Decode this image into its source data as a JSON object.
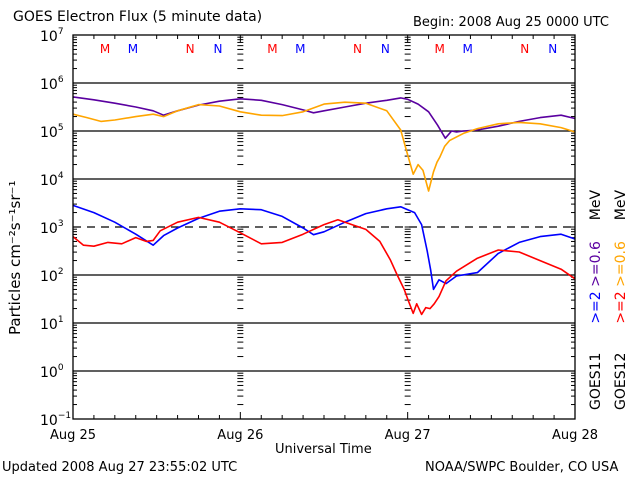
{
  "header": {
    "title": "GOES Electron Flux (5 minute data)",
    "begin": "Begin: 2008 Aug 25 0000 UTC"
  },
  "footer": {
    "updated": "Updated 2008 Aug 27 23:55:02 UTC",
    "source": "NOAA/SWPC Boulder, CO USA"
  },
  "legend": {
    "goes11": {
      "label": "GOES11",
      "series": [
        {
          "text": ">=2",
          "color": "#0000ff"
        },
        {
          "text": ">=0.6",
          "color": "#5a00a0"
        },
        {
          "text": "MeV",
          "color": "#000000"
        }
      ]
    },
    "goes12": {
      "label": "GOES12",
      "series": [
        {
          "text": ">=2",
          "color": "#ff0000"
        },
        {
          "text": ">=0.6",
          "color": "#ffa500"
        },
        {
          "text": "MeV",
          "color": "#000000"
        }
      ]
    }
  },
  "chart_data": {
    "type": "line",
    "title": "GOES Electron Flux (5 minute data)",
    "xlabel": "Universal Time",
    "ylabel": "Particles cm⁻²s⁻¹sr⁻¹",
    "x_unit": "hours since 2008 Aug 25 0000 UTC",
    "xlim": [
      0,
      72
    ],
    "ylim": [
      0.1,
      10000000
    ],
    "yscale": "log",
    "x_tick_labels": [
      {
        "x": 0,
        "label": "Aug 25"
      },
      {
        "x": 24,
        "label": "Aug 26"
      },
      {
        "x": 48,
        "label": "Aug 27"
      },
      {
        "x": 72,
        "label": "Aug 28"
      }
    ],
    "x_minor_tick_interval_hours": 3,
    "y_tick_labels": [
      {
        "exp": 7,
        "label": "10",
        "sup": "7"
      },
      {
        "exp": 6,
        "label": "10",
        "sup": "6"
      },
      {
        "exp": 5,
        "label": "10",
        "sup": "5"
      },
      {
        "exp": 4,
        "label": "10",
        "sup": "4"
      },
      {
        "exp": 3,
        "label": "10",
        "sup": "3"
      },
      {
        "exp": 2,
        "label": "10",
        "sup": "2"
      },
      {
        "exp": 1,
        "label": "10",
        "sup": "1"
      },
      {
        "exp": 0,
        "label": "10",
        "sup": "0"
      },
      {
        "exp": -1,
        "label": "10",
        "sup": "−1"
      }
    ],
    "solid_gridlines_at": [
      1000000,
      100000,
      10000,
      100,
      10,
      1
    ],
    "dashed_threshold_at": 1000,
    "markers": [
      {
        "x": 4.6,
        "label": "M",
        "color": "#ff0000"
      },
      {
        "x": 8.6,
        "label": "M",
        "color": "#0000ff"
      },
      {
        "x": 16.8,
        "label": "N",
        "color": "#ff0000"
      },
      {
        "x": 20.8,
        "label": "N",
        "color": "#0000ff"
      },
      {
        "x": 28.6,
        "label": "M",
        "color": "#ff0000"
      },
      {
        "x": 32.6,
        "label": "M",
        "color": "#0000ff"
      },
      {
        "x": 40.8,
        "label": "N",
        "color": "#ff0000"
      },
      {
        "x": 44.8,
        "label": "N",
        "color": "#0000ff"
      },
      {
        "x": 52.6,
        "label": "M",
        "color": "#ff0000"
      },
      {
        "x": 56.6,
        "label": "M",
        "color": "#0000ff"
      },
      {
        "x": 64.8,
        "label": "N",
        "color": "#ff0000"
      },
      {
        "x": 68.8,
        "label": "N",
        "color": "#0000ff"
      }
    ],
    "series": [
      {
        "name": "GOES11 >=0.6 MeV",
        "color": "#5a00a0",
        "x": [
          0,
          3,
          6,
          9,
          11.5,
          13,
          15,
          18,
          21,
          24,
          27,
          30,
          33,
          34.5,
          36,
          39,
          42,
          45,
          47,
          48,
          49.5,
          51,
          52.3,
          53.4,
          54.3,
          55,
          56,
          58,
          61,
          64,
          67,
          70,
          72
        ],
        "log10_y": [
          5.71,
          5.65,
          5.58,
          5.5,
          5.42,
          5.33,
          5.42,
          5.54,
          5.62,
          5.67,
          5.64,
          5.55,
          5.44,
          5.38,
          5.42,
          5.5,
          5.58,
          5.64,
          5.69,
          5.66,
          5.56,
          5.4,
          5.12,
          4.85,
          5.0,
          4.98,
          5.0,
          5.02,
          5.1,
          5.2,
          5.28,
          5.33,
          5.26
        ]
      },
      {
        "name": "GOES12 >=0.6 MeV",
        "color": "#ffa500",
        "x": [
          0,
          2,
          4,
          6,
          9,
          11.5,
          13,
          15,
          18,
          21,
          24,
          27,
          30,
          33,
          36,
          39,
          42,
          45,
          47,
          48,
          48.8,
          49.5,
          50.2,
          51,
          51.7,
          52.2,
          52.6,
          53.3,
          54,
          56,
          58,
          61,
          64,
          67,
          70,
          72
        ],
        "log10_y": [
          5.35,
          5.28,
          5.2,
          5.23,
          5.3,
          5.35,
          5.3,
          5.42,
          5.55,
          5.52,
          5.4,
          5.33,
          5.32,
          5.4,
          5.56,
          5.6,
          5.58,
          5.42,
          5.02,
          4.5,
          4.1,
          4.3,
          4.18,
          3.75,
          4.15,
          4.35,
          4.45,
          4.68,
          4.8,
          4.95,
          5.05,
          5.15,
          5.18,
          5.15,
          5.07,
          4.98
        ]
      },
      {
        "name": "GOES11 >=2 MeV",
        "color": "#0000ff",
        "x": [
          0,
          3,
          6,
          9,
          11.5,
          13,
          15,
          18,
          21,
          24,
          27,
          30,
          33,
          34.5,
          36,
          39,
          42,
          45,
          47,
          48,
          49,
          50,
          50.8,
          51.3,
          51.7,
          52.5,
          53.5,
          55,
          58,
          61,
          64,
          67,
          70,
          72
        ],
        "log10_y": [
          3.45,
          3.3,
          3.1,
          2.85,
          2.62,
          2.82,
          2.98,
          3.18,
          3.33,
          3.38,
          3.36,
          3.22,
          2.98,
          2.84,
          2.9,
          3.1,
          3.28,
          3.38,
          3.42,
          3.36,
          3.3,
          3.05,
          2.5,
          2.1,
          1.7,
          1.9,
          1.82,
          1.98,
          2.05,
          2.45,
          2.68,
          2.8,
          2.85,
          2.75
        ]
      },
      {
        "name": "GOES12 >=2 MeV",
        "color": "#ff0000",
        "x": [
          0,
          1.5,
          3,
          5,
          7,
          9,
          10.5,
          11.5,
          12.5,
          15,
          18,
          21,
          24,
          27,
          30,
          33,
          36,
          38,
          40,
          42,
          44,
          45.5,
          46.5,
          47.5,
          48,
          48.8,
          49.3,
          50,
          50.6,
          51.2,
          51.8,
          52.5,
          53.5,
          55,
          58,
          61,
          64,
          67,
          70,
          72
        ],
        "log10_y": [
          2.8,
          2.62,
          2.6,
          2.68,
          2.65,
          2.78,
          2.7,
          2.72,
          2.92,
          3.1,
          3.2,
          3.1,
          2.88,
          2.65,
          2.68,
          2.85,
          3.05,
          3.15,
          3.05,
          2.95,
          2.7,
          2.32,
          2.0,
          1.7,
          1.5,
          1.2,
          1.4,
          1.18,
          1.32,
          1.3,
          1.4,
          1.55,
          1.88,
          2.08,
          2.35,
          2.52,
          2.48,
          2.3,
          2.12,
          1.92
        ]
      }
    ]
  }
}
